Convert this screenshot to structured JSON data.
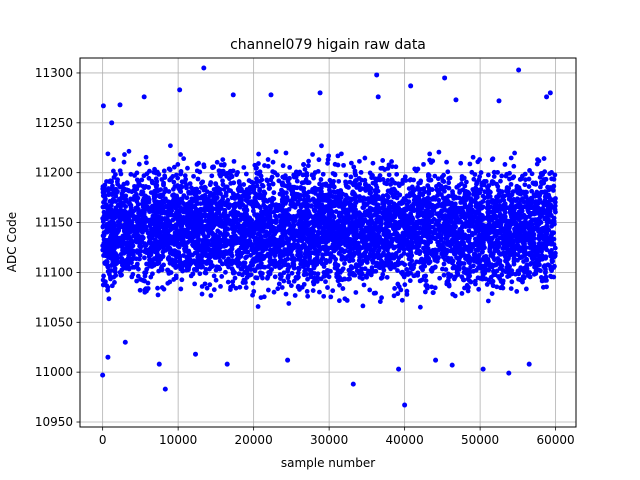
{
  "chart_data": {
    "type": "scatter",
    "title": "channel079 higain raw data",
    "xlabel": "sample number",
    "ylabel": "ADC Code",
    "xlim": [
      -3000,
      62700
    ],
    "ylim": [
      10945,
      11315
    ],
    "xticks": [
      0,
      10000,
      20000,
      30000,
      40000,
      50000,
      60000
    ],
    "yticks": [
      10950,
      11000,
      11050,
      11100,
      11150,
      11200,
      11250,
      11300
    ],
    "grid": true,
    "marker_color": "#0000ff",
    "series": [
      {
        "dense_band": {
          "x_range": [
            0,
            60000
          ],
          "y_range": [
            11060,
            11230
          ]
        },
        "points": [
          {
            "x": 0,
            "y": 10997
          },
          {
            "x": 100,
            "y": 11267
          },
          {
            "x": 700,
            "y": 11015
          },
          {
            "x": 1200,
            "y": 11250
          },
          {
            "x": 2300,
            "y": 11268
          },
          {
            "x": 3000,
            "y": 11030
          },
          {
            "x": 5500,
            "y": 11276
          },
          {
            "x": 7500,
            "y": 11008
          },
          {
            "x": 8300,
            "y": 10983
          },
          {
            "x": 10200,
            "y": 11283
          },
          {
            "x": 12300,
            "y": 11018
          },
          {
            "x": 13400,
            "y": 11305
          },
          {
            "x": 16500,
            "y": 11008
          },
          {
            "x": 17300,
            "y": 11278
          },
          {
            "x": 22300,
            "y": 11278
          },
          {
            "x": 24500,
            "y": 11012
          },
          {
            "x": 28800,
            "y": 11280
          },
          {
            "x": 33200,
            "y": 10988
          },
          {
            "x": 36300,
            "y": 11298
          },
          {
            "x": 36500,
            "y": 11276
          },
          {
            "x": 39200,
            "y": 11003
          },
          {
            "x": 40000,
            "y": 10967
          },
          {
            "x": 40800,
            "y": 11287
          },
          {
            "x": 44100,
            "y": 11012
          },
          {
            "x": 45300,
            "y": 11295
          },
          {
            "x": 46300,
            "y": 11007
          },
          {
            "x": 46800,
            "y": 11273
          },
          {
            "x": 50400,
            "y": 11003
          },
          {
            "x": 52500,
            "y": 11272
          },
          {
            "x": 53800,
            "y": 10999
          },
          {
            "x": 55100,
            "y": 11303
          },
          {
            "x": 56500,
            "y": 11008
          },
          {
            "x": 58800,
            "y": 11276
          },
          {
            "x": 59300,
            "y": 11280
          }
        ]
      }
    ]
  }
}
